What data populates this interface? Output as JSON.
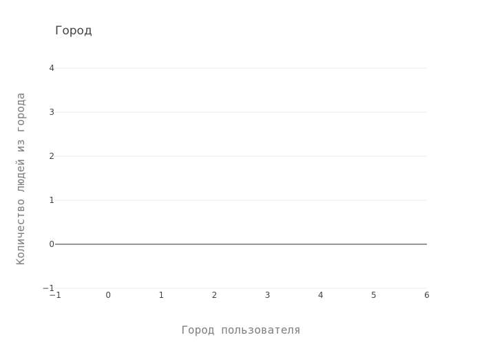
{
  "chart_data": {
    "type": "bar",
    "title": "Город",
    "xlabel": "Город пользователя",
    "ylabel": "Количество людей из города",
    "xlim": [
      -1,
      6
    ],
    "ylim": [
      -1,
      4
    ],
    "x_ticks": [
      -1,
      0,
      1,
      2,
      3,
      4,
      5,
      6
    ],
    "y_ticks": [
      -1,
      0,
      1,
      2,
      3,
      4
    ],
    "x_tick_labels": [
      "−1",
      "0",
      "1",
      "2",
      "3",
      "4",
      "5",
      "6"
    ],
    "y_tick_labels": [
      "−1",
      "0",
      "1",
      "2",
      "3",
      "4"
    ],
    "categories": [],
    "values": [],
    "grid": true,
    "zero_line": true,
    "colors": {
      "grid": "#eeeeee",
      "zero_line": "#444444",
      "text": "#444444",
      "axis_title": "#7f7f7f"
    }
  }
}
